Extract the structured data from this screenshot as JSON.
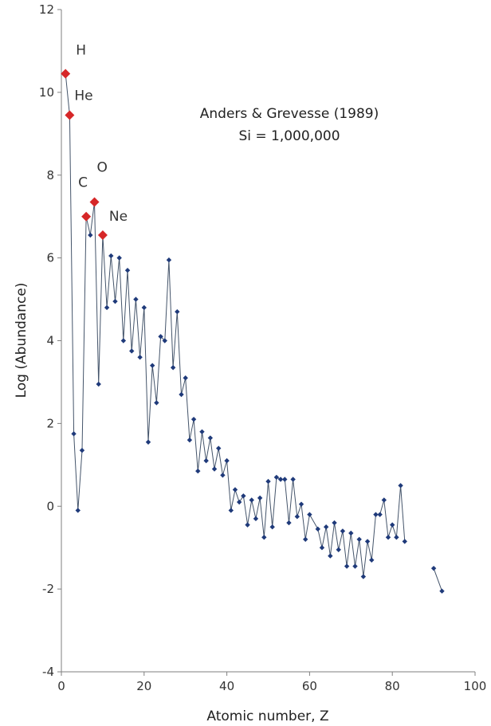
{
  "chart_data": {
    "type": "scatter",
    "xlabel": "Atomic number, Z",
    "ylabel": "Log (Abundance)",
    "xlim": [
      0,
      100
    ],
    "ylim": [
      -4,
      12
    ],
    "xticks": [
      0,
      20,
      40,
      60,
      80,
      100
    ],
    "yticks": [
      -4,
      -2,
      0,
      2,
      4,
      6,
      8,
      10,
      12
    ],
    "grid": false,
    "annotations": [
      "Anders & Grevesse (1989)",
      "Si = 1,000,000"
    ],
    "colors": {
      "series": "#1f3a7a",
      "line": "#44546a",
      "highlight": "#d62728",
      "axis": "#7f7f7f"
    },
    "series": [
      {
        "connected": true,
        "points": [
          [
            1,
            10.45
          ],
          [
            2,
            9.45
          ],
          [
            3,
            1.75
          ],
          [
            4,
            -0.1
          ],
          [
            5,
            1.35
          ],
          [
            6,
            7.0
          ],
          [
            7,
            6.55
          ],
          [
            8,
            7.35
          ],
          [
            9,
            2.95
          ],
          [
            10,
            6.55
          ],
          [
            11,
            4.8
          ],
          [
            12,
            6.05
          ],
          [
            13,
            4.95
          ],
          [
            14,
            6.0
          ],
          [
            15,
            4.0
          ],
          [
            16,
            5.7
          ],
          [
            17,
            3.75
          ],
          [
            18,
            5.0
          ],
          [
            19,
            3.6
          ],
          [
            20,
            4.8
          ],
          [
            21,
            1.55
          ],
          [
            22,
            3.4
          ],
          [
            23,
            2.5
          ],
          [
            24,
            4.1
          ],
          [
            25,
            4.0
          ],
          [
            26,
            5.95
          ],
          [
            27,
            3.35
          ],
          [
            28,
            4.7
          ],
          [
            29,
            2.7
          ],
          [
            30,
            3.1
          ],
          [
            31,
            1.6
          ],
          [
            32,
            2.1
          ],
          [
            33,
            0.85
          ],
          [
            34,
            1.8
          ],
          [
            35,
            1.1
          ],
          [
            36,
            1.65
          ],
          [
            37,
            0.9
          ],
          [
            38,
            1.4
          ],
          [
            39,
            0.75
          ],
          [
            40,
            1.1
          ],
          [
            41,
            -0.1
          ],
          [
            42,
            0.4
          ],
          [
            43,
            0.1
          ],
          [
            44,
            0.25
          ],
          [
            45,
            -0.45
          ],
          [
            46,
            0.15
          ],
          [
            47,
            -0.3
          ],
          [
            48,
            0.2
          ],
          [
            49,
            -0.75
          ],
          [
            50,
            0.6
          ],
          [
            51,
            -0.5
          ],
          [
            52,
            0.7
          ],
          [
            53,
            0.65
          ],
          [
            54,
            0.65
          ],
          [
            55,
            -0.4
          ],
          [
            56,
            0.65
          ],
          [
            57,
            -0.25
          ],
          [
            58,
            0.05
          ],
          [
            59,
            -0.8
          ],
          [
            60,
            -0.2
          ],
          [
            62,
            -0.55
          ],
          [
            63,
            -1.0
          ],
          [
            64,
            -0.5
          ],
          [
            65,
            -1.2
          ],
          [
            66,
            -0.4
          ],
          [
            67,
            -1.05
          ],
          [
            68,
            -0.6
          ],
          [
            69,
            -1.45
          ],
          [
            70,
            -0.65
          ],
          [
            71,
            -1.45
          ],
          [
            72,
            -0.8
          ],
          [
            73,
            -1.7
          ],
          [
            74,
            -0.85
          ],
          [
            75,
            -1.3
          ],
          [
            76,
            -0.2
          ],
          [
            77,
            -0.2
          ],
          [
            78,
            0.15
          ],
          [
            79,
            -0.75
          ],
          [
            80,
            -0.45
          ],
          [
            81,
            -0.75
          ],
          [
            82,
            0.5
          ],
          [
            83,
            -0.85
          ]
        ]
      },
      {
        "connected": true,
        "points": [
          [
            90,
            -1.5
          ],
          [
            92,
            -2.05
          ]
        ]
      },
      {
        "highlighted": true,
        "points": [
          {
            "z": 1,
            "y": 10.45,
            "label": "H"
          },
          {
            "z": 2,
            "y": 9.45,
            "label": "He"
          },
          {
            "z": 6,
            "y": 7.0,
            "label": "C"
          },
          {
            "z": 8,
            "y": 7.35,
            "label": "O"
          },
          {
            "z": 10,
            "y": 6.55,
            "label": "Ne"
          }
        ]
      }
    ]
  }
}
